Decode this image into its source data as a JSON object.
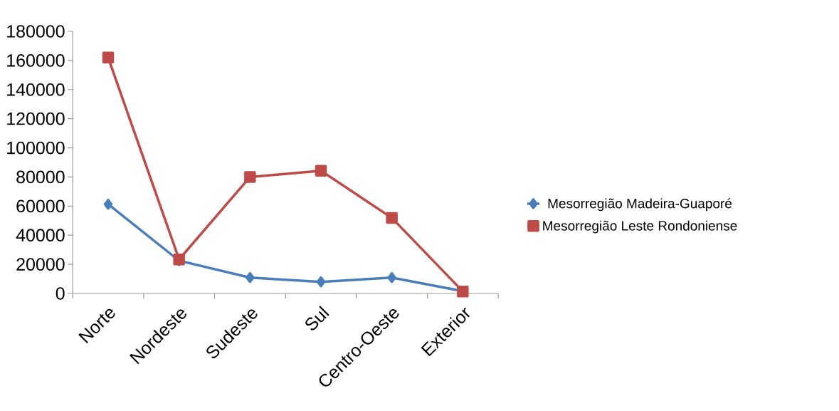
{
  "chart_data": {
    "type": "line",
    "categories": [
      "Norte",
      "Nordeste",
      "Sudeste",
      "Sul",
      "Centro-Oeste",
      "Exterior"
    ],
    "series": [
      {
        "name": "Mesorregião Madeira-Guaporé",
        "color": "#4a7ebb",
        "marker": "diamond",
        "values": [
          61300,
          22500,
          10900,
          8000,
          10900,
          1600
        ]
      },
      {
        "name": "Mesorregião Leste Rondoniense",
        "color": "#be4b48",
        "marker": "square",
        "values": [
          162000,
          23400,
          80000,
          84300,
          51900,
          1400
        ]
      }
    ],
    "ylim": [
      0,
      180000
    ],
    "yticks": [
      0,
      20000,
      40000,
      60000,
      80000,
      100000,
      120000,
      140000,
      160000,
      180000
    ],
    "grid": false,
    "legend": "right"
  }
}
